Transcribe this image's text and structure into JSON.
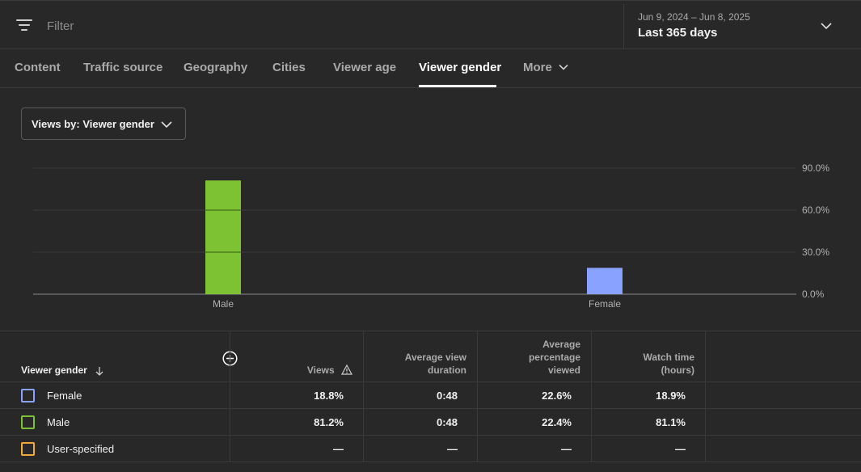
{
  "filter_bar": {
    "placeholder": "Filter",
    "date_range": "Jun 9, 2024 – Jun 8, 2025",
    "period_label": "Last 365 days"
  },
  "tabs": [
    {
      "label": "Content"
    },
    {
      "label": "Traffic source"
    },
    {
      "label": "Geography"
    },
    {
      "label": "Cities"
    },
    {
      "label": "Viewer age"
    },
    {
      "label": "Viewer gender",
      "active": true
    },
    {
      "label": "More"
    }
  ],
  "dropdown": {
    "label": "Views by: Viewer gender"
  },
  "chart_data": {
    "type": "bar",
    "categories": [
      "Male",
      "Female"
    ],
    "values": [
      81.2,
      18.8
    ],
    "colors": [
      "#7dc233",
      "#8aa2ff"
    ],
    "ylim": [
      0,
      90
    ],
    "yticks": [
      "0.0%",
      "30.0%",
      "60.0%",
      "90.0%"
    ],
    "ytick_values": [
      0,
      30,
      60,
      90
    ],
    "grid": true,
    "title": "",
    "xlabel": "",
    "ylabel": ""
  },
  "table": {
    "columns": [
      {
        "label": "Viewer gender"
      },
      {
        "label": "Views"
      },
      {
        "label_lines": [
          "Average view",
          "duration"
        ]
      },
      {
        "label_lines": [
          "Average",
          "percentage",
          "viewed"
        ]
      },
      {
        "label_lines": [
          "Watch time",
          "(hours)"
        ]
      }
    ],
    "rows": [
      {
        "label": "Female",
        "color": "#8aa2ff",
        "views": "18.8%",
        "avd": "0:48",
        "apv": "22.6%",
        "watch": "18.9%"
      },
      {
        "label": "Male",
        "color": "#7dc233",
        "views": "81.2%",
        "avd": "0:48",
        "apv": "22.4%",
        "watch": "81.1%"
      },
      {
        "label": "User-specified",
        "color": "#f2a93b",
        "views": "—",
        "avd": "—",
        "apv": "—",
        "watch": "—"
      }
    ]
  },
  "icons": {
    "filter": "filter-lines-icon",
    "chevron": "chevron-down-icon",
    "sort": "arrow-down-icon",
    "warning": "warning-triangle-icon",
    "add": "add-circle-icon"
  }
}
